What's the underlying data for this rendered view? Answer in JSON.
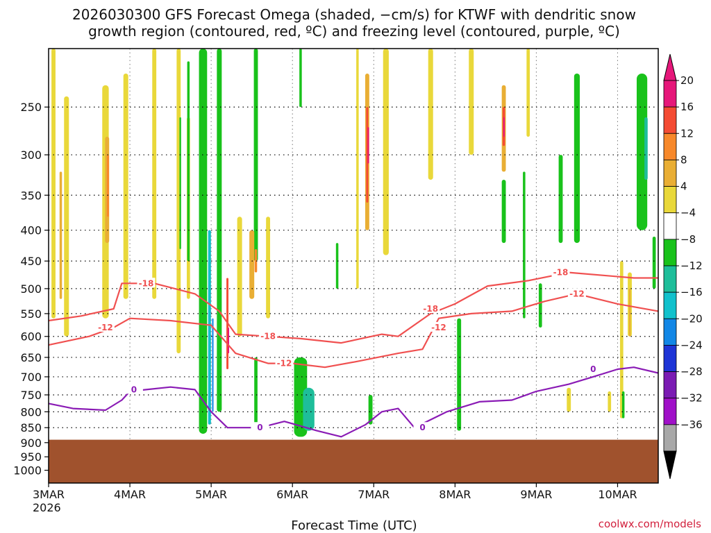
{
  "chart_data": {
    "type": "heatmap",
    "title_lines": [
      "2026030300 GFS Forecast Omega (shaded, −cm/s) for KTWF with dendritic snow",
      "growth region (contoured, red, ºC) and freezing level (contoured, purple, ºC)"
    ],
    "xlabel": "Forecast Time (UTC)",
    "credit": "coolwx.com/models",
    "x_ticks": [
      "3MAR",
      "4MAR",
      "5MAR",
      "6MAR",
      "7MAR",
      "8MAR",
      "9MAR",
      "10MAR"
    ],
    "x_year": "2026",
    "x_range_days": [
      0,
      7.5
    ],
    "y_ticks": [
      250,
      300,
      350,
      400,
      450,
      500,
      550,
      600,
      650,
      700,
      750,
      800,
      850,
      900,
      950,
      1000
    ],
    "y_range_hpa": [
      200,
      1050
    ],
    "y_scale": "log",
    "terrain": {
      "color": "#a0522d",
      "top_hpa": 890
    },
    "colorbar": {
      "labels": [
        "20",
        "16",
        "12",
        "8",
        "4",
        "−4",
        "−8",
        "−12",
        "−16",
        "−20",
        "−24",
        "−28",
        "−32",
        "−36"
      ],
      "colors": [
        "#e6177a",
        "#f44b33",
        "#f7882a",
        "#e9ae34",
        "#e9d83a",
        "#ffffff",
        "#19c21b",
        "#1ebe9a",
        "#11c1cc",
        "#1287e6",
        "#1e34d6",
        "#7b1bb3",
        "#a010c8",
        "#a8a8a8"
      ],
      "top_arrow_color": "#e6177a",
      "bottom_arrow_color": "#000000"
    },
    "omega_fields": [
      {
        "cls": "y",
        "color": "#e9d83a",
        "t": 0.06,
        "p0": 200,
        "p1": 560,
        "w": 0.05
      },
      {
        "cls": "y",
        "color": "#e9d83a",
        "t": 0.22,
        "p0": 240,
        "p1": 600,
        "w": 0.06
      },
      {
        "cls": "o",
        "color": "#e9ae34",
        "t": 0.15,
        "p0": 320,
        "p1": 520,
        "w": 0.03
      },
      {
        "cls": "y",
        "color": "#e9d83a",
        "t": 0.7,
        "p0": 230,
        "p1": 560,
        "w": 0.08
      },
      {
        "cls": "o",
        "color": "#e9ae34",
        "t": 0.72,
        "p0": 280,
        "p1": 420,
        "w": 0.05
      },
      {
        "cls": "r",
        "color": "#f7882a",
        "t": 0.73,
        "p0": 300,
        "p1": 380,
        "w": 0.025
      },
      {
        "cls": "y",
        "color": "#e9d83a",
        "t": 0.95,
        "p0": 220,
        "p1": 520,
        "w": 0.06
      },
      {
        "cls": "y",
        "color": "#e9d83a",
        "t": 1.3,
        "p0": 200,
        "p1": 520,
        "w": 0.05
      },
      {
        "cls": "y",
        "color": "#e9d83a",
        "t": 1.6,
        "p0": 200,
        "p1": 640,
        "w": 0.05
      },
      {
        "cls": "y",
        "color": "#e9d83a",
        "t": 1.72,
        "p0": 260,
        "p1": 520,
        "w": 0.04
      },
      {
        "cls": "g",
        "color": "#19c21b",
        "t": 1.72,
        "p0": 210,
        "p1": 450,
        "w": 0.03
      },
      {
        "cls": "g",
        "color": "#19c21b",
        "t": 1.62,
        "p0": 260,
        "p1": 430,
        "w": 0.02
      },
      {
        "cls": "g",
        "color": "#19c21b",
        "t": 1.9,
        "p0": 200,
        "p1": 870,
        "w": 0.1
      },
      {
        "cls": "g",
        "color": "#19c21b",
        "t": 2.1,
        "p0": 200,
        "p1": 800,
        "w": 0.06
      },
      {
        "cls": "c",
        "color": "#11c1cc",
        "t": 1.98,
        "p0": 400,
        "p1": 840,
        "w": 0.035
      },
      {
        "cls": "b",
        "color": "#1287e6",
        "t": 2.02,
        "p0": 560,
        "p1": 800,
        "w": 0.018
      },
      {
        "cls": "g",
        "color": "#19c21b",
        "t": 2.55,
        "p0": 200,
        "p1": 450,
        "w": 0.05
      },
      {
        "cls": "y",
        "color": "#e9d83a",
        "t": 2.35,
        "p0": 380,
        "p1": 600,
        "w": 0.06
      },
      {
        "cls": "r",
        "color": "#f44b33",
        "t": 2.2,
        "p0": 480,
        "p1": 680,
        "w": 0.025
      },
      {
        "cls": "m",
        "color": "#e6177a",
        "t": 2.21,
        "p0": 580,
        "p1": 640,
        "w": 0.012
      },
      {
        "cls": "o",
        "color": "#e9ae34",
        "t": 2.5,
        "p0": 400,
        "p1": 520,
        "w": 0.06
      },
      {
        "cls": "o",
        "color": "#f7882a",
        "t": 2.55,
        "p0": 430,
        "p1": 470,
        "w": 0.03
      },
      {
        "cls": "y",
        "color": "#e9d83a",
        "t": 2.7,
        "p0": 380,
        "p1": 560,
        "w": 0.05
      },
      {
        "cls": "g",
        "color": "#19c21b",
        "t": 2.55,
        "p0": 650,
        "p1": 850,
        "w": 0.04
      },
      {
        "cls": "g",
        "color": "#19c21b",
        "t": 3.1,
        "p0": 650,
        "p1": 880,
        "w": 0.16
      },
      {
        "cls": "t",
        "color": "#1ebe9a",
        "t": 3.2,
        "p0": 730,
        "p1": 860,
        "w": 0.14
      },
      {
        "cls": "g",
        "color": "#19c21b",
        "t": 3.1,
        "p0": 200,
        "p1": 250,
        "w": 0.03
      },
      {
        "cls": "g",
        "color": "#19c21b",
        "t": 3.55,
        "p0": 420,
        "p1": 500,
        "w": 0.03
      },
      {
        "cls": "y",
        "color": "#e9d83a",
        "t": 3.8,
        "p0": 200,
        "p1": 500,
        "w": 0.03
      },
      {
        "cls": "o",
        "color": "#e9ae34",
        "t": 3.92,
        "p0": 220,
        "p1": 400,
        "w": 0.05
      },
      {
        "cls": "r",
        "color": "#f44b33",
        "t": 3.92,
        "p0": 250,
        "p1": 360,
        "w": 0.025
      },
      {
        "cls": "m",
        "color": "#e6177a",
        "t": 3.93,
        "p0": 270,
        "p1": 310,
        "w": 0.01
      },
      {
        "cls": "y",
        "color": "#e9d83a",
        "t": 4.15,
        "p0": 200,
        "p1": 440,
        "w": 0.07
      },
      {
        "cls": "g",
        "color": "#19c21b",
        "t": 3.96,
        "p0": 750,
        "p1": 840,
        "w": 0.05
      },
      {
        "cls": "y",
        "color": "#e9d83a",
        "t": 4.7,
        "p0": 200,
        "p1": 330,
        "w": 0.06
      },
      {
        "cls": "y",
        "color": "#e9d83a",
        "t": 5.2,
        "p0": 200,
        "p1": 300,
        "w": 0.06
      },
      {
        "cls": "o",
        "color": "#e9ae34",
        "t": 5.6,
        "p0": 230,
        "p1": 320,
        "w": 0.05
      },
      {
        "cls": "r",
        "color": "#f44b33",
        "t": 5.6,
        "p0": 250,
        "p1": 290,
        "w": 0.03
      },
      {
        "cls": "m",
        "color": "#e6177a",
        "t": 5.6,
        "p0": 260,
        "p1": 280,
        "w": 0.012
      },
      {
        "cls": "y",
        "color": "#e9d83a",
        "t": 5.9,
        "p0": 200,
        "p1": 280,
        "w": 0.04
      },
      {
        "cls": "g",
        "color": "#19c21b",
        "t": 5.6,
        "p0": 330,
        "p1": 420,
        "w": 0.05
      },
      {
        "cls": "g",
        "color": "#19c21b",
        "t": 5.85,
        "p0": 320,
        "p1": 560,
        "w": 0.03
      },
      {
        "cls": "g",
        "color": "#19c21b",
        "t": 5.05,
        "p0": 560,
        "p1": 860,
        "w": 0.05
      },
      {
        "cls": "g",
        "color": "#19c21b",
        "t": 6.3,
        "p0": 300,
        "p1": 420,
        "w": 0.05
      },
      {
        "cls": "g",
        "color": "#19c21b",
        "t": 6.5,
        "p0": 220,
        "p1": 420,
        "w": 0.07
      },
      {
        "cls": "g",
        "color": "#19c21b",
        "t": 7.3,
        "p0": 220,
        "p1": 400,
        "w": 0.13
      },
      {
        "cls": "t",
        "color": "#1ebe9a",
        "t": 7.35,
        "p0": 260,
        "p1": 330,
        "w": 0.04
      },
      {
        "cls": "g",
        "color": "#19c21b",
        "t": 7.45,
        "p0": 410,
        "p1": 500,
        "w": 0.04
      },
      {
        "cls": "y",
        "color": "#e9d83a",
        "t": 7.05,
        "p0": 450,
        "p1": 820,
        "w": 0.04
      },
      {
        "cls": "y",
        "color": "#e9d83a",
        "t": 7.15,
        "p0": 470,
        "p1": 600,
        "w": 0.05
      },
      {
        "cls": "o",
        "color": "#e9ae34",
        "t": 7.15,
        "p0": 500,
        "p1": 600,
        "w": 0.02
      },
      {
        "cls": "g",
        "color": "#19c21b",
        "t": 6.05,
        "p0": 490,
        "p1": 580,
        "w": 0.04
      },
      {
        "cls": "y",
        "color": "#e9d83a",
        "t": 6.4,
        "p0": 730,
        "p1": 800,
        "w": 0.05
      },
      {
        "cls": "y",
        "color": "#e9d83a",
        "t": 6.9,
        "p0": 740,
        "p1": 800,
        "w": 0.04
      },
      {
        "cls": "g",
        "color": "#19c21b",
        "t": 7.07,
        "p0": 740,
        "p1": 820,
        "w": 0.03
      }
    ],
    "contours": [
      {
        "name": "-18",
        "color": "#f05050",
        "label": "-18",
        "t": [
          0,
          0.4,
          0.8,
          0.9,
          1.3,
          1.8,
          2.1,
          2.3,
          2.7,
          3.1,
          3.6,
          4.1,
          4.3,
          4.7,
          5.0,
          5.4,
          5.9,
          6.4,
          7.2,
          7.5
        ],
        "p": [
          565,
          555,
          540,
          490,
          490,
          510,
          545,
          595,
          600,
          605,
          615,
          595,
          600,
          550,
          530,
          495,
          485,
          470,
          480,
          480
        ],
        "labels_at": [
          [
            1.2,
            490
          ],
          [
            2.7,
            600
          ],
          [
            4.7,
            540
          ],
          [
            6.3,
            470
          ]
        ]
      },
      {
        "name": "-12",
        "color": "#f05050",
        "label": "-12",
        "t": [
          0,
          0.5,
          0.8,
          1.0,
          1.5,
          2.0,
          2.3,
          2.7,
          3.0,
          3.4,
          3.8,
          4.3,
          4.6,
          4.8,
          5.2,
          5.7,
          6.1,
          6.5,
          7.0,
          7.5
        ],
        "p": [
          620,
          600,
          580,
          560,
          565,
          575,
          640,
          665,
          665,
          675,
          660,
          640,
          630,
          560,
          550,
          545,
          525,
          510,
          530,
          545
        ],
        "labels_at": [
          [
            0.7,
            580
          ],
          [
            2.9,
            665
          ],
          [
            4.8,
            580
          ],
          [
            6.5,
            510
          ]
        ]
      },
      {
        "name": "0",
        "color": "#8a1bb5",
        "label": "0",
        "t": [
          0,
          0.3,
          0.7,
          0.9,
          1.0,
          1.2,
          1.5,
          1.8,
          2.0,
          2.2,
          2.6,
          2.9,
          3.3,
          3.6,
          3.9,
          4.1,
          4.3,
          4.5,
          4.9,
          5.3,
          5.7,
          6.0,
          6.4,
          6.7,
          7.0,
          7.2,
          7.5
        ],
        "p": [
          775,
          790,
          795,
          765,
          740,
          735,
          728,
          735,
          800,
          850,
          850,
          830,
          860,
          880,
          840,
          800,
          790,
          850,
          800,
          770,
          765,
          740,
          720,
          700,
          680,
          675,
          690
        ],
        "labels_at": [
          [
            1.05,
            735
          ],
          [
            2.6,
            850
          ],
          [
            4.6,
            850
          ],
          [
            6.7,
            680
          ]
        ]
      }
    ]
  }
}
